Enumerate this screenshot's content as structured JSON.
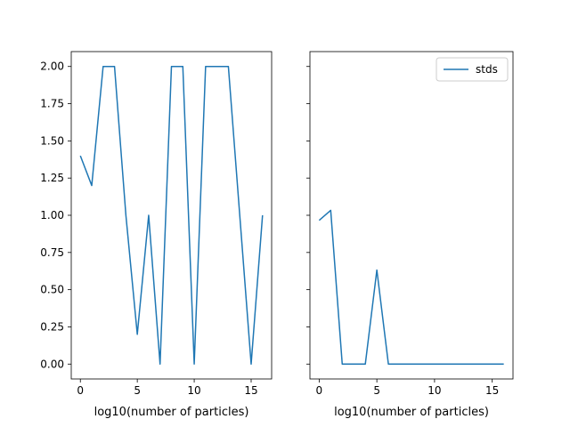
{
  "chart_data": [
    {
      "type": "line",
      "xlabel": "log10(number of particles)",
      "ylabel": "",
      "xlim": [
        -0.8,
        16.8
      ],
      "ylim": [
        -0.1,
        2.1
      ],
      "xticks": [
        0,
        5,
        10,
        15
      ],
      "yticks": [
        0.0,
        0.25,
        0.5,
        0.75,
        1.0,
        1.25,
        1.5,
        1.75,
        2.0
      ],
      "ytick_labels": [
        "0.00",
        "0.25",
        "0.50",
        "0.75",
        "1.00",
        "1.25",
        "1.50",
        "1.75",
        "2.00"
      ],
      "series": [
        {
          "color": "#1f77b4",
          "x": [
            0,
            1,
            2,
            3,
            4,
            5,
            6,
            7,
            8,
            9,
            10,
            11,
            12,
            13,
            14,
            15,
            16
          ],
          "y": [
            1.4,
            1.2,
            2.0,
            2.0,
            1.0,
            0.2,
            1.0,
            0.0,
            2.0,
            2.0,
            0.0,
            2.0,
            2.0,
            2.0,
            1.0,
            0.0,
            1.0
          ]
        }
      ],
      "legend": null
    },
    {
      "type": "line",
      "xlabel": "log10(number of particles)",
      "ylabel": "",
      "xlim": [
        -0.8,
        16.8
      ],
      "ylim": [
        -0.1,
        2.1
      ],
      "shared_y": true,
      "xticks": [
        0,
        5,
        10,
        15
      ],
      "series": [
        {
          "name": "stds",
          "color": "#1f77b4",
          "x": [
            0,
            1,
            2,
            3,
            4,
            5,
            6,
            7,
            8,
            9,
            10,
            11,
            12,
            13,
            14,
            15,
            16
          ],
          "y": [
            0.966,
            1.033,
            0.0,
            0.0,
            0.0,
            0.632,
            0.0,
            0.0,
            0.0,
            0.0,
            0.0,
            0.0,
            0.0,
            0.0,
            0.0,
            0.0,
            0.0
          ]
        }
      ],
      "legend": "top-right"
    }
  ]
}
